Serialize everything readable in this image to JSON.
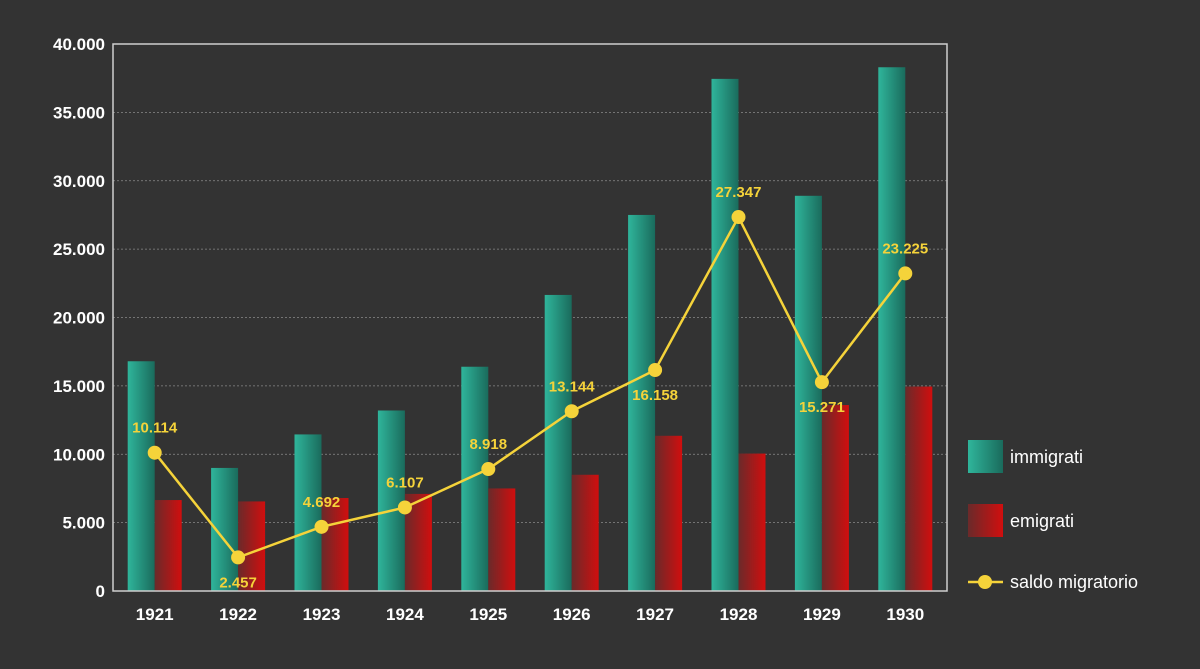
{
  "chart_data": {
    "type": "bar",
    "title": "",
    "xlabel": "",
    "ylabel": "",
    "categories": [
      "1921",
      "1922",
      "1923",
      "1924",
      "1925",
      "1926",
      "1927",
      "1928",
      "1929",
      "1930"
    ],
    "ylim": [
      0,
      40000
    ],
    "yticks": [
      0,
      5000,
      10000,
      15000,
      20000,
      25000,
      30000,
      35000,
      40000
    ],
    "ytick_labels": [
      "0",
      "5.000",
      "10.000",
      "15.000",
      "20.000",
      "25.000",
      "30.000",
      "35.000",
      "40.000"
    ],
    "grid": true,
    "legend_position": "right",
    "series": [
      {
        "name": "immigrati",
        "type": "bar",
        "color": "#2fb59b",
        "values": [
          16800,
          9000,
          11450,
          13200,
          16400,
          21650,
          27500,
          37450,
          28900,
          38300
        ]
      },
      {
        "name": "emigrati",
        "type": "bar",
        "color": "#cc1111",
        "values": [
          6650,
          6550,
          6800,
          7100,
          7500,
          8500,
          11350,
          10050,
          13600,
          14950
        ]
      },
      {
        "name": "saldo migratorio",
        "type": "line",
        "color": "#f5d33a",
        "values": [
          10114,
          2457,
          4692,
          6107,
          8918,
          13144,
          16158,
          27347,
          15271,
          23225
        ],
        "labels": [
          "10.114",
          "2.457",
          "4.692",
          "6.107",
          "8.918",
          "13.144",
          "16.158",
          "27.347",
          "15.271",
          "23.225"
        ]
      }
    ]
  }
}
